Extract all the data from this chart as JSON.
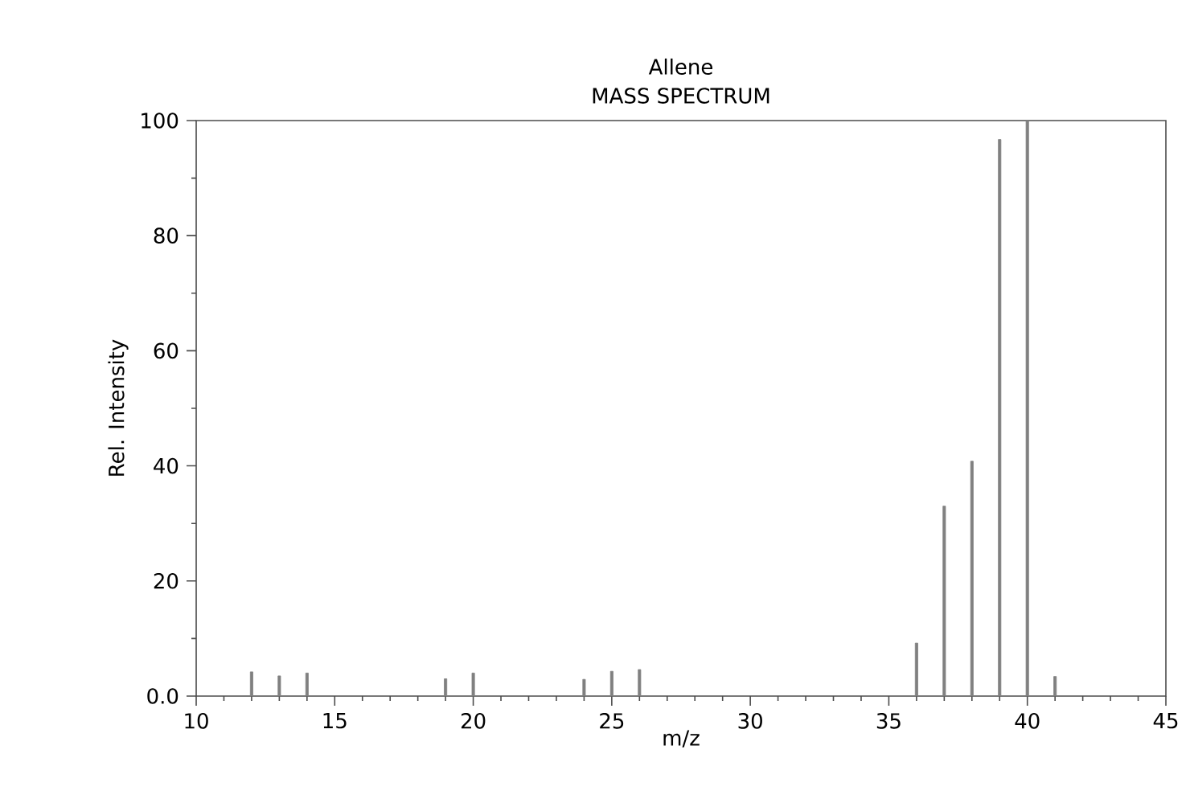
{
  "chart_data": {
    "type": "bar",
    "title": "Allene",
    "subtitle": "MASS SPECTRUM",
    "xlabel": "m/z",
    "ylabel": "Rel. Intensity",
    "x": [
      12,
      13,
      14,
      19,
      20,
      24,
      25,
      26,
      36,
      37,
      38,
      39,
      40,
      41
    ],
    "values": [
      4.2,
      3.5,
      4,
      3,
      4,
      2.9,
      4.3,
      4.6,
      9.2,
      33,
      40.8,
      96.7,
      100,
      3.4
    ],
    "color": "#808080",
    "xlim": [
      10,
      45
    ],
    "xticks": [
      10,
      15,
      20,
      25,
      30,
      35,
      40,
      45
    ],
    "ylim": [
      0,
      100
    ],
    "yticks": [
      {
        "value": 0,
        "label": "0.0"
      },
      20,
      40,
      60,
      80,
      100
    ],
    "grid": false
  }
}
